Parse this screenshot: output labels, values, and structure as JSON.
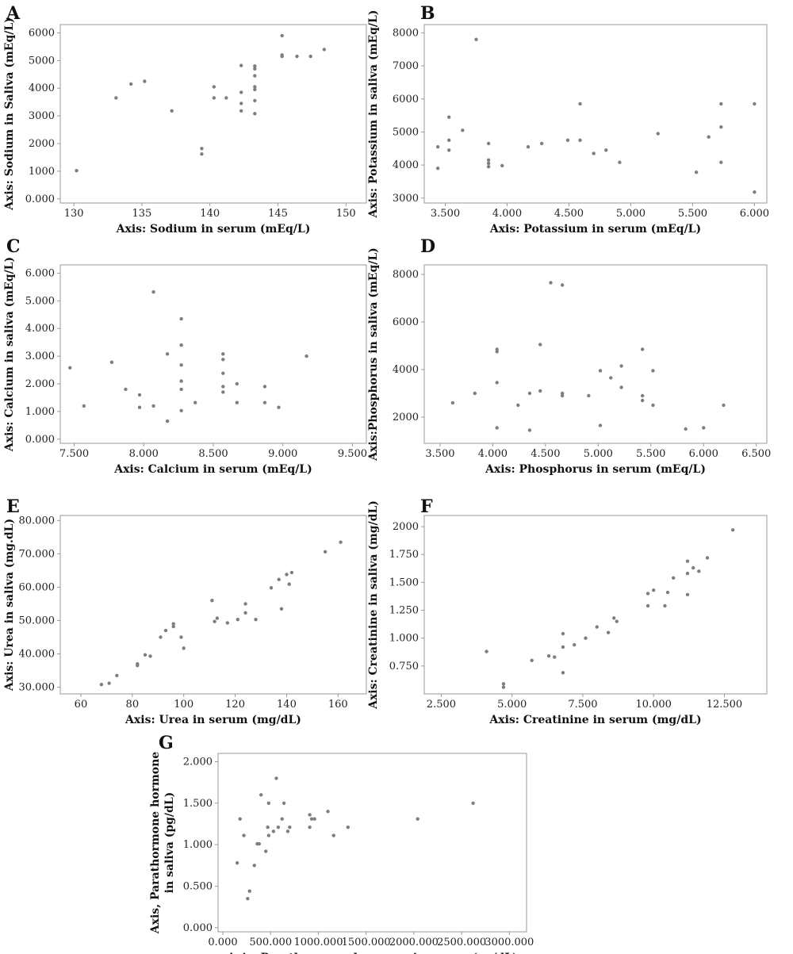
{
  "colors": {
    "point": "#7a7f84",
    "axis": "#999999",
    "text": "#111111"
  },
  "chart_data": [
    {
      "type": "scatter",
      "panel": "A",
      "xlabel": "Axis: Sodium in serum (mEq/L)",
      "ylabel": "Axis: Sodium in Saliva (mEq/L)",
      "xlim": [
        129,
        151.5
      ],
      "ylim": [
        -150,
        6300
      ],
      "xticks": [
        130,
        135,
        140,
        145,
        150
      ],
      "xtick_labels": [
        "130",
        "135",
        "140",
        "145",
        "150"
      ],
      "yticks": [
        0,
        1000,
        2000,
        3000,
        4000,
        5000,
        6000
      ],
      "ytick_labels": [
        "0.000",
        "1000",
        "2000",
        "3000",
        "4000",
        "5000",
        "6000"
      ],
      "points": [
        [
          130.2,
          1020
        ],
        [
          133.1,
          3650
        ],
        [
          134.2,
          4150
        ],
        [
          135.2,
          4250
        ],
        [
          137.2,
          3180
        ],
        [
          139.4,
          1820
        ],
        [
          139.4,
          1620
        ],
        [
          140.3,
          4050
        ],
        [
          140.3,
          3650
        ],
        [
          141.2,
          3650
        ],
        [
          142.3,
          4820
        ],
        [
          142.3,
          3850
        ],
        [
          142.3,
          3450
        ],
        [
          142.3,
          3180
        ],
        [
          143.3,
          4800
        ],
        [
          143.3,
          4700
        ],
        [
          143.3,
          4450
        ],
        [
          143.3,
          4050
        ],
        [
          143.3,
          3950
        ],
        [
          143.3,
          3550
        ],
        [
          143.3,
          3080
        ],
        [
          145.3,
          5900
        ],
        [
          145.3,
          5200
        ],
        [
          145.3,
          5150
        ],
        [
          146.4,
          5150
        ],
        [
          147.4,
          5150
        ],
        [
          148.4,
          5400
        ]
      ]
    },
    {
      "type": "scatter",
      "panel": "B",
      "xlabel": "Axis: Potassium in serum (mEq/L)",
      "ylabel": "Axis: Potassium in saliva (mEq/L)",
      "xlim": [
        3.33,
        6.1
      ],
      "ylim": [
        2850,
        8250
      ],
      "xticks": [
        3.5,
        4.0,
        4.5,
        5.0,
        5.5,
        6.0
      ],
      "xtick_labels": [
        "3.500",
        "4.000",
        "4.500",
        "5.000",
        "5.500",
        "6.000"
      ],
      "yticks": [
        3000,
        4000,
        5000,
        6000,
        7000,
        8000
      ],
      "ytick_labels": [
        "3000",
        "4000",
        "5000",
        "6000",
        "7000",
        "8000"
      ],
      "points": [
        [
          3.44,
          4550
        ],
        [
          3.44,
          3900
        ],
        [
          3.53,
          5450
        ],
        [
          3.53,
          4750
        ],
        [
          3.53,
          4450
        ],
        [
          3.64,
          5050
        ],
        [
          3.75,
          7800
        ],
        [
          3.85,
          4650
        ],
        [
          3.85,
          4150
        ],
        [
          3.85,
          4050
        ],
        [
          3.85,
          3950
        ],
        [
          3.96,
          3980
        ],
        [
          4.17,
          4550
        ],
        [
          4.28,
          4650
        ],
        [
          4.49,
          4750
        ],
        [
          4.59,
          5850
        ],
        [
          4.59,
          4750
        ],
        [
          4.7,
          4350
        ],
        [
          4.8,
          4450
        ],
        [
          4.91,
          4080
        ],
        [
          5.22,
          4950
        ],
        [
          5.53,
          3780
        ],
        [
          5.63,
          4850
        ],
        [
          5.73,
          5850
        ],
        [
          5.73,
          5150
        ],
        [
          5.73,
          4080
        ],
        [
          6.0,
          5850
        ],
        [
          6.0,
          3180
        ]
      ]
    },
    {
      "type": "scatter",
      "panel": "C",
      "xlabel": "Axis: Calcium in serum (mEq/L)",
      "ylabel": "Axis: Calcium in saliva (mEq/L)",
      "xlim": [
        7.4,
        9.6
      ],
      "ylim": [
        -150,
        6300
      ],
      "xticks": [
        7.5,
        8.0,
        8.5,
        9.0,
        9.5
      ],
      "xtick_labels": [
        "7.500",
        "8.000",
        "8.500",
        "9.000",
        "9.500"
      ],
      "yticks": [
        0,
        1000,
        2000,
        3000,
        4000,
        5000,
        6000
      ],
      "ytick_labels": [
        "0.000",
        "1.000",
        "2.000",
        "3.000",
        "4.000",
        "5.000",
        "6.000"
      ],
      "points": [
        [
          7.47,
          2580
        ],
        [
          7.57,
          1200
        ],
        [
          7.77,
          2780
        ],
        [
          7.87,
          1800
        ],
        [
          7.97,
          1600
        ],
        [
          7.97,
          1150
        ],
        [
          8.07,
          5320
        ],
        [
          8.07,
          1200
        ],
        [
          8.17,
          3080
        ],
        [
          8.17,
          650
        ],
        [
          8.27,
          4350
        ],
        [
          8.27,
          3400
        ],
        [
          8.27,
          2680
        ],
        [
          8.27,
          2100
        ],
        [
          8.27,
          1800
        ],
        [
          8.27,
          1030
        ],
        [
          8.37,
          1320
        ],
        [
          8.57,
          3080
        ],
        [
          8.57,
          2880
        ],
        [
          8.57,
          2380
        ],
        [
          8.57,
          1900
        ],
        [
          8.57,
          1700
        ],
        [
          8.67,
          2000
        ],
        [
          8.67,
          1320
        ],
        [
          8.87,
          1900
        ],
        [
          8.87,
          1320
        ],
        [
          8.97,
          1150
        ],
        [
          9.17,
          3000
        ]
      ]
    },
    {
      "type": "scatter",
      "panel": "D",
      "xlabel": "Axis: Phosphorus in serum (mEq/L)",
      "ylabel": "Axis:Phosphorus in saliva (mEq/L)",
      "xlim": [
        3.35,
        6.6
      ],
      "ylim": [
        900,
        8400
      ],
      "xticks": [
        3.5,
        4.0,
        4.5,
        5.0,
        5.5,
        6.0,
        6.5
      ],
      "xtick_labels": [
        "3.500",
        "4.000",
        "4.500",
        "5.000",
        "5.500",
        "6.000",
        "6.500"
      ],
      "yticks": [
        2000,
        4000,
        6000,
        8000
      ],
      "ytick_labels": [
        "2000",
        "4000",
        "6000",
        "8000"
      ],
      "points": [
        [
          3.62,
          2600
        ],
        [
          3.83,
          3000
        ],
        [
          4.04,
          4850
        ],
        [
          4.04,
          4750
        ],
        [
          4.04,
          3450
        ],
        [
          4.04,
          1550
        ],
        [
          4.24,
          2500
        ],
        [
          4.35,
          3000
        ],
        [
          4.35,
          1450
        ],
        [
          4.45,
          5050
        ],
        [
          4.45,
          3100
        ],
        [
          4.55,
          7650
        ],
        [
          4.66,
          7550
        ],
        [
          4.66,
          3000
        ],
        [
          4.66,
          2900
        ],
        [
          4.91,
          2900
        ],
        [
          5.02,
          3950
        ],
        [
          5.02,
          1650
        ],
        [
          5.12,
          3650
        ],
        [
          5.22,
          4150
        ],
        [
          5.22,
          3250
        ],
        [
          5.42,
          4850
        ],
        [
          5.42,
          2900
        ],
        [
          5.42,
          2700
        ],
        [
          5.52,
          3950
        ],
        [
          5.52,
          2500
        ],
        [
          5.83,
          1500
        ],
        [
          6.0,
          1550
        ],
        [
          6.19,
          2500
        ]
      ]
    },
    {
      "type": "scatter",
      "panel": "E",
      "xlabel": "Axis: Urea in serum (mg/dL)",
      "ylabel": "Axis: Urea in saliva (mg.dL)",
      "xlim": [
        52,
        171
      ],
      "ylim": [
        28000,
        81500
      ],
      "xticks": [
        60,
        80,
        100,
        120,
        140,
        160
      ],
      "xtick_labels": [
        "60",
        "80",
        "100",
        "120",
        "140",
        "160"
      ],
      "yticks": [
        30000,
        40000,
        50000,
        60000,
        70000,
        80000
      ],
      "ytick_labels": [
        "30.000",
        "40.000",
        "50.000",
        "60.000",
        "70.000",
        "80.000"
      ],
      "points": [
        [
          68,
          30800
        ],
        [
          71,
          31200
        ],
        [
          74,
          33500
        ],
        [
          82,
          37000
        ],
        [
          82,
          36500
        ],
        [
          85,
          39700
        ],
        [
          87,
          39300
        ],
        [
          91,
          45000
        ],
        [
          93,
          47000
        ],
        [
          96,
          49000
        ],
        [
          96,
          48200
        ],
        [
          99,
          45000
        ],
        [
          100,
          41700
        ],
        [
          111,
          56000
        ],
        [
          112,
          49700
        ],
        [
          113,
          50700
        ],
        [
          117,
          49300
        ],
        [
          121,
          50300
        ],
        [
          124,
          55000
        ],
        [
          124,
          52300
        ],
        [
          128,
          50300
        ],
        [
          134,
          59800
        ],
        [
          137,
          62300
        ],
        [
          138,
          53500
        ],
        [
          140,
          63800
        ],
        [
          141,
          60900
        ],
        [
          142,
          64400
        ],
        [
          155,
          70600
        ],
        [
          161,
          73500
        ]
      ]
    },
    {
      "type": "scatter",
      "panel": "F",
      "xlabel": "Axis: Creatinine in serum (mg/dL)",
      "ylabel": "Axis: Creatinine in saliva (mg/dL)",
      "xlim": [
        1.9,
        14.0
      ],
      "ylim": [
        500,
        2100
      ],
      "xticks": [
        2.5,
        5.0,
        7.5,
        10.0,
        12.5
      ],
      "xtick_labels": [
        "2.500",
        "5.000",
        "7.500",
        "10.000",
        "12.500"
      ],
      "yticks": [
        750,
        1000,
        1250,
        1500,
        1750,
        2000
      ],
      "ytick_labels": [
        "0.750",
        "1.000",
        "1.250",
        "1.500",
        "1.750",
        "2000"
      ],
      "points": [
        [
          4.1,
          880
        ],
        [
          4.7,
          590
        ],
        [
          4.7,
          560
        ],
        [
          5.7,
          800
        ],
        [
          6.3,
          840
        ],
        [
          6.5,
          830
        ],
        [
          6.8,
          1040
        ],
        [
          6.8,
          920
        ],
        [
          6.8,
          690
        ],
        [
          7.2,
          940
        ],
        [
          7.6,
          1000
        ],
        [
          8.0,
          1100
        ],
        [
          8.4,
          1050
        ],
        [
          8.6,
          1180
        ],
        [
          8.7,
          1150
        ],
        [
          9.8,
          1400
        ],
        [
          9.8,
          1290
        ],
        [
          10.0,
          1430
        ],
        [
          10.4,
          1290
        ],
        [
          10.5,
          1410
        ],
        [
          10.7,
          1540
        ],
        [
          11.2,
          1690
        ],
        [
          11.2,
          1580
        ],
        [
          11.2,
          1390
        ],
        [
          11.4,
          1630
        ],
        [
          11.6,
          1600
        ],
        [
          11.9,
          1720
        ],
        [
          12.8,
          1970
        ]
      ]
    },
    {
      "type": "scatter",
      "panel": "G",
      "xlabel": "Axis: Parathormone hormone in serum (pg/dL)",
      "ylabel": "Axis, Parathormone hormone in saliva (pg/dL)",
      "xlim": [
        -50,
        3180
      ],
      "ylim": [
        -50,
        2100
      ],
      "xticks": [
        0,
        500,
        1000,
        1500,
        2000,
        2500,
        3000
      ],
      "xtick_labels": [
        "0.000",
        "500.000",
        "1000.000",
        "1500.000",
        "2000.000",
        "2500.000",
        "3000.000"
      ],
      "yticks": [
        0,
        500,
        1000,
        1500,
        2000
      ],
      "ytick_labels": [
        "0.000",
        "0.500",
        "1.000",
        "1.500",
        "2.000"
      ],
      "points": [
        [
          150,
          780
        ],
        [
          180,
          1310
        ],
        [
          220,
          1110
        ],
        [
          260,
          350
        ],
        [
          280,
          440
        ],
        [
          330,
          750
        ],
        [
          360,
          1010
        ],
        [
          400,
          1600
        ],
        [
          380,
          1010
        ],
        [
          450,
          920
        ],
        [
          470,
          1210
        ],
        [
          480,
          1500
        ],
        [
          480,
          1110
        ],
        [
          530,
          1160
        ],
        [
          560,
          1800
        ],
        [
          580,
          1210
        ],
        [
          620,
          1310
        ],
        [
          640,
          1500
        ],
        [
          680,
          1160
        ],
        [
          700,
          1210
        ],
        [
          910,
          1360
        ],
        [
          910,
          1210
        ],
        [
          930,
          1310
        ],
        [
          960,
          1310
        ],
        [
          1100,
          1400
        ],
        [
          1160,
          1110
        ],
        [
          1310,
          1210
        ],
        [
          2040,
          1310
        ],
        [
          2620,
          1500
        ]
      ]
    }
  ]
}
